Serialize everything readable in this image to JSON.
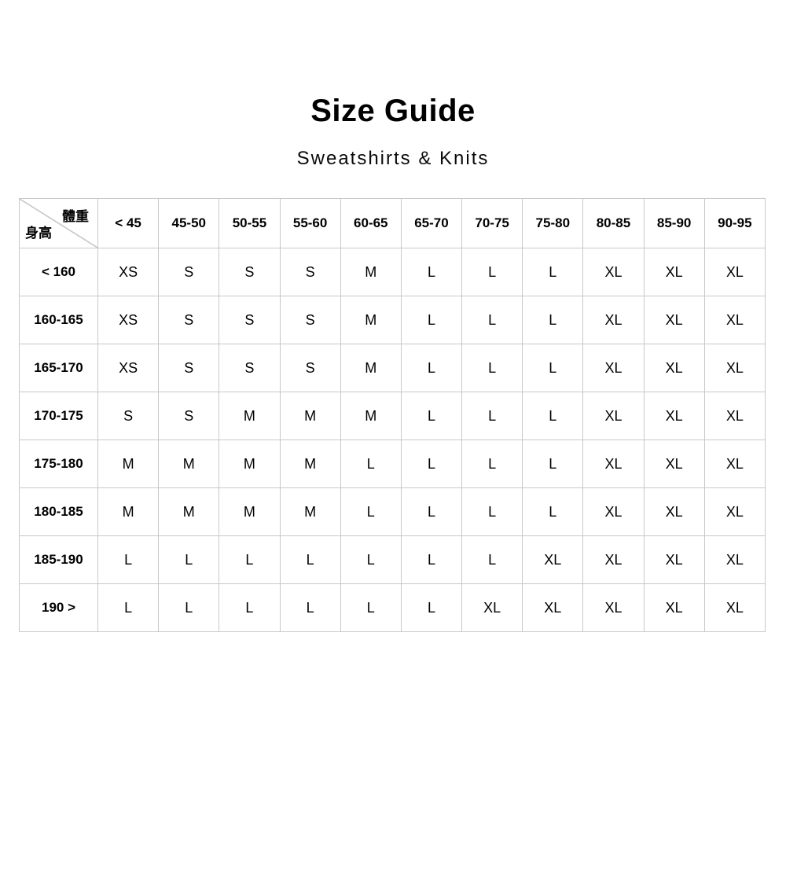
{
  "page": {
    "title": "Size Guide",
    "subtitle": "Sweatshirts & Knits"
  },
  "table": {
    "corner": {
      "weight_label": "體重",
      "height_label": "身高"
    },
    "weight_columns": [
      "< 45",
      "45-50",
      "50-55",
      "55-60",
      "60-65",
      "65-70",
      "70-75",
      "75-80",
      "80-85",
      "85-90",
      "90-95"
    ],
    "rows": [
      {
        "height": "< 160",
        "sizes": [
          "XS",
          "S",
          "S",
          "S",
          "M",
          "L",
          "L",
          "L",
          "XL",
          "XL",
          "XL"
        ]
      },
      {
        "height": "160-165",
        "sizes": [
          "XS",
          "S",
          "S",
          "S",
          "M",
          "L",
          "L",
          "L",
          "XL",
          "XL",
          "XL"
        ]
      },
      {
        "height": "165-170",
        "sizes": [
          "XS",
          "S",
          "S",
          "S",
          "M",
          "L",
          "L",
          "L",
          "XL",
          "XL",
          "XL"
        ]
      },
      {
        "height": "170-175",
        "sizes": [
          "S",
          "S",
          "M",
          "M",
          "M",
          "L",
          "L",
          "L",
          "XL",
          "XL",
          "XL"
        ]
      },
      {
        "height": "175-180",
        "sizes": [
          "M",
          "M",
          "M",
          "M",
          "L",
          "L",
          "L",
          "L",
          "XL",
          "XL",
          "XL"
        ]
      },
      {
        "height": "180-185",
        "sizes": [
          "M",
          "M",
          "M",
          "M",
          "L",
          "L",
          "L",
          "L",
          "XL",
          "XL",
          "XL"
        ]
      },
      {
        "height": "185-190",
        "sizes": [
          "L",
          "L",
          "L",
          "L",
          "L",
          "L",
          "L",
          "XL",
          "XL",
          "XL",
          "XL"
        ]
      },
      {
        "height": "190 >",
        "sizes": [
          "L",
          "L",
          "L",
          "L",
          "L",
          "L",
          "XL",
          "XL",
          "XL",
          "XL",
          "XL"
        ]
      }
    ],
    "border_color": "#c8c8c8"
  }
}
